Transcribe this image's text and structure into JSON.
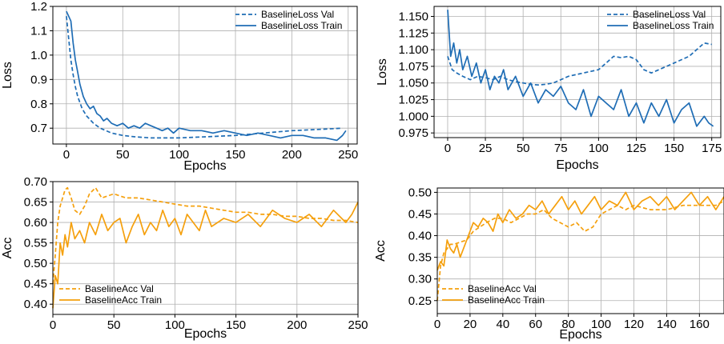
{
  "colors": {
    "loss": "#1f6db5",
    "acc": "#f5a00d",
    "grid": "#b0b0b0"
  },
  "chart_data": [
    {
      "type": "line",
      "xlabel": "Epochs",
      "ylabel": "Loss",
      "xlim": [
        -12,
        258
      ],
      "ylim": [
        0.635,
        1.2
      ],
      "xticks": [
        0,
        50,
        100,
        150,
        200,
        250
      ],
      "yticks": [
        0.7,
        0.8,
        0.9,
        1.0,
        1.1,
        1.2
      ],
      "xtick_labels": [
        "0",
        "50",
        "100",
        "150",
        "200",
        "250"
      ],
      "ytick_labels": [
        "0.7",
        "0.8",
        "0.9",
        "1.0",
        "1.1",
        "1.2"
      ],
      "grid": true,
      "legend_position": "top-right",
      "series": [
        {
          "name": "BaselineLoss Val",
          "style": "dashed",
          "color": "#1f6db5",
          "x": [
            0,
            2,
            4,
            6,
            8,
            10,
            14,
            18,
            24,
            30,
            40,
            50,
            60,
            75,
            100,
            125,
            150,
            175,
            200,
            225,
            245
          ],
          "y": [
            1.16,
            1.07,
            0.98,
            0.92,
            0.87,
            0.83,
            0.78,
            0.75,
            0.72,
            0.7,
            0.68,
            0.67,
            0.665,
            0.66,
            0.66,
            0.665,
            0.67,
            0.68,
            0.69,
            0.695,
            0.7
          ]
        },
        {
          "name": "BaselineLoss Train",
          "style": "solid",
          "color": "#1f6db5",
          "x": [
            0,
            2,
            4,
            6,
            8,
            10,
            12,
            15,
            18,
            21,
            24,
            27,
            30,
            33,
            36,
            40,
            45,
            50,
            55,
            60,
            65,
            70,
            75,
            80,
            85,
            90,
            95,
            100,
            110,
            120,
            130,
            140,
            150,
            160,
            170,
            180,
            190,
            200,
            210,
            220,
            230,
            240,
            245,
            248
          ],
          "y": [
            1.18,
            1.16,
            1.14,
            1.05,
            0.98,
            0.93,
            0.88,
            0.83,
            0.8,
            0.78,
            0.79,
            0.76,
            0.75,
            0.73,
            0.74,
            0.72,
            0.71,
            0.72,
            0.7,
            0.71,
            0.7,
            0.72,
            0.71,
            0.7,
            0.69,
            0.7,
            0.68,
            0.7,
            0.69,
            0.69,
            0.68,
            0.69,
            0.68,
            0.67,
            0.68,
            0.67,
            0.66,
            0.67,
            0.67,
            0.66,
            0.66,
            0.65,
            0.67,
            0.69
          ]
        }
      ]
    },
    {
      "type": "line",
      "xlabel": "Epochs",
      "ylabel": "Loss",
      "xlim": [
        -9,
        181
      ],
      "ylim": [
        0.968,
        1.165
      ],
      "xticks": [
        0,
        25,
        50,
        75,
        100,
        125,
        150,
        175
      ],
      "yticks": [
        0.975,
        1.0,
        1.025,
        1.05,
        1.075,
        1.1,
        1.125,
        1.15
      ],
      "xtick_labels": [
        "0",
        "25",
        "50",
        "75",
        "100",
        "125",
        "150",
        "175"
      ],
      "ytick_labels": [
        "0.975",
        "1.000",
        "1.025",
        "1.050",
        "1.075",
        "1.100",
        "1.125",
        "1.150"
      ],
      "grid": true,
      "legend_position": "top-right",
      "series": [
        {
          "name": "BaselineLoss Val",
          "style": "dashed",
          "color": "#1f6db5",
          "x": [
            0,
            3,
            6,
            10,
            15,
            20,
            25,
            30,
            35,
            40,
            45,
            50,
            55,
            60,
            65,
            70,
            75,
            80,
            90,
            100,
            105,
            110,
            115,
            120,
            125,
            130,
            135,
            140,
            150,
            160,
            170,
            175
          ],
          "y": [
            1.09,
            1.07,
            1.065,
            1.06,
            1.055,
            1.06,
            1.058,
            1.055,
            1.06,
            1.055,
            1.052,
            1.05,
            1.048,
            1.047,
            1.048,
            1.05,
            1.055,
            1.06,
            1.065,
            1.07,
            1.08,
            1.09,
            1.088,
            1.09,
            1.085,
            1.07,
            1.065,
            1.07,
            1.08,
            1.09,
            1.11,
            1.108
          ]
        },
        {
          "name": "BaselineLoss Train",
          "style": "solid",
          "color": "#1f6db5",
          "x": [
            0,
            2,
            4,
            6,
            8,
            10,
            13,
            16,
            19,
            22,
            25,
            28,
            31,
            34,
            37,
            40,
            45,
            50,
            55,
            60,
            65,
            70,
            75,
            80,
            85,
            90,
            95,
            100,
            105,
            110,
            115,
            120,
            125,
            130,
            135,
            140,
            145,
            150,
            155,
            160,
            165,
            170,
            173,
            176
          ],
          "y": [
            1.16,
            1.09,
            1.11,
            1.08,
            1.1,
            1.07,
            1.09,
            1.06,
            1.08,
            1.05,
            1.07,
            1.04,
            1.06,
            1.05,
            1.07,
            1.04,
            1.06,
            1.03,
            1.05,
            1.02,
            1.04,
            1.03,
            1.045,
            1.02,
            1.01,
            1.04,
            1.0,
            1.03,
            1.02,
            1.01,
            1.04,
            1.0,
            1.02,
            0.99,
            1.02,
            1.0,
            1.025,
            0.99,
            1.01,
            1.02,
            0.985,
            1.0,
            0.99,
            0.985
          ]
        }
      ]
    },
    {
      "type": "line",
      "xlabel": "Epochs",
      "ylabel": "Acc",
      "xlim": [
        0,
        250
      ],
      "ylim": [
        0.375,
        0.7
      ],
      "xticks": [
        0,
        50,
        100,
        150,
        200,
        250
      ],
      "yticks": [
        0.4,
        0.45,
        0.5,
        0.55,
        0.6,
        0.65,
        0.7
      ],
      "xtick_labels": [
        "0",
        "50",
        "100",
        "150",
        "200",
        "250"
      ],
      "ytick_labels": [
        "0.40",
        "0.45",
        "0.50",
        "0.55",
        "0.60",
        "0.65",
        "0.70"
      ],
      "grid": true,
      "legend_position": "bottom-left",
      "series": [
        {
          "name": "BaselineAcc  Val",
          "style": "dashed",
          "color": "#f5a00d",
          "x": [
            0,
            2,
            4,
            6,
            8,
            10,
            12,
            15,
            18,
            22,
            26,
            30,
            35,
            40,
            45,
            50,
            55,
            60,
            70,
            80,
            90,
            100,
            110,
            120,
            130,
            140,
            150,
            160,
            170,
            180,
            190,
            200,
            210,
            220,
            230,
            240,
            250
          ],
          "y": [
            0.45,
            0.52,
            0.6,
            0.64,
            0.66,
            0.68,
            0.685,
            0.66,
            0.63,
            0.62,
            0.64,
            0.67,
            0.685,
            0.66,
            0.665,
            0.67,
            0.665,
            0.66,
            0.66,
            0.655,
            0.65,
            0.645,
            0.64,
            0.64,
            0.635,
            0.63,
            0.625,
            0.625,
            0.62,
            0.62,
            0.615,
            0.615,
            0.61,
            0.61,
            0.605,
            0.605,
            0.6
          ]
        },
        {
          "name": "BaselineAcc Train",
          "style": "solid",
          "color": "#f5a00d",
          "x": [
            0,
            2,
            4,
            6,
            8,
            10,
            12,
            15,
            18,
            22,
            26,
            30,
            35,
            40,
            45,
            50,
            55,
            60,
            65,
            70,
            75,
            80,
            85,
            90,
            95,
            100,
            105,
            110,
            115,
            120,
            125,
            130,
            140,
            150,
            160,
            170,
            180,
            190,
            200,
            210,
            220,
            230,
            240,
            245,
            250
          ],
          "y": [
            0.39,
            0.47,
            0.45,
            0.55,
            0.52,
            0.57,
            0.54,
            0.6,
            0.56,
            0.58,
            0.55,
            0.6,
            0.57,
            0.62,
            0.58,
            0.6,
            0.61,
            0.55,
            0.59,
            0.62,
            0.57,
            0.6,
            0.58,
            0.63,
            0.59,
            0.61,
            0.57,
            0.62,
            0.6,
            0.58,
            0.63,
            0.59,
            0.61,
            0.6,
            0.62,
            0.59,
            0.63,
            0.61,
            0.6,
            0.62,
            0.59,
            0.63,
            0.6,
            0.62,
            0.65
          ]
        }
      ]
    },
    {
      "type": "line",
      "xlabel": "Epochs",
      "ylabel": "Acc",
      "xlim": [
        0,
        175
      ],
      "ylim": [
        0.22,
        0.51
      ],
      "xticks": [
        0,
        20,
        40,
        60,
        80,
        100,
        120,
        140,
        160
      ],
      "yticks": [
        0.25,
        0.3,
        0.35,
        0.4,
        0.45,
        0.5
      ],
      "xtick_labels": [
        "0",
        "20",
        "40",
        "60",
        "80",
        "100",
        "120",
        "140",
        "160"
      ],
      "ytick_labels": [
        "0.25",
        "0.30",
        "0.35",
        "0.40",
        "0.45",
        "0.50"
      ],
      "grid": true,
      "legend_position": "bottom-left",
      "series": [
        {
          "name": "BaselineAcc  Val",
          "style": "dashed",
          "color": "#f5a00d",
          "x": [
            0,
            2,
            4,
            6,
            8,
            10,
            14,
            18,
            22,
            26,
            30,
            35,
            40,
            45,
            50,
            55,
            60,
            65,
            70,
            75,
            80,
            85,
            90,
            95,
            100,
            105,
            110,
            115,
            120,
            130,
            140,
            150,
            160,
            170,
            175
          ],
          "y": [
            0.25,
            0.33,
            0.36,
            0.37,
            0.38,
            0.38,
            0.385,
            0.39,
            0.41,
            0.42,
            0.43,
            0.44,
            0.44,
            0.43,
            0.44,
            0.45,
            0.45,
            0.46,
            0.44,
            0.43,
            0.42,
            0.43,
            0.41,
            0.42,
            0.45,
            0.46,
            0.47,
            0.46,
            0.47,
            0.46,
            0.46,
            0.47,
            0.47,
            0.47,
            0.48
          ]
        },
        {
          "name": "BaselineAcc Train",
          "style": "solid",
          "color": "#f5a00d",
          "x": [
            0,
            2,
            4,
            6,
            8,
            10,
            12,
            14,
            16,
            18,
            20,
            22,
            25,
            28,
            31,
            34,
            37,
            40,
            44,
            48,
            52,
            56,
            60,
            64,
            68,
            72,
            76,
            80,
            84,
            88,
            92,
            96,
            100,
            105,
            110,
            115,
            120,
            125,
            130,
            135,
            140,
            145,
            150,
            155,
            160,
            165,
            170,
            175
          ],
          "y": [
            0.32,
            0.34,
            0.33,
            0.39,
            0.37,
            0.36,
            0.38,
            0.35,
            0.37,
            0.39,
            0.41,
            0.43,
            0.42,
            0.44,
            0.43,
            0.41,
            0.45,
            0.43,
            0.46,
            0.44,
            0.45,
            0.47,
            0.46,
            0.48,
            0.45,
            0.47,
            0.49,
            0.46,
            0.48,
            0.45,
            0.47,
            0.49,
            0.46,
            0.48,
            0.47,
            0.5,
            0.46,
            0.48,
            0.49,
            0.47,
            0.49,
            0.46,
            0.48,
            0.5,
            0.47,
            0.49,
            0.46,
            0.49
          ]
        }
      ]
    }
  ]
}
